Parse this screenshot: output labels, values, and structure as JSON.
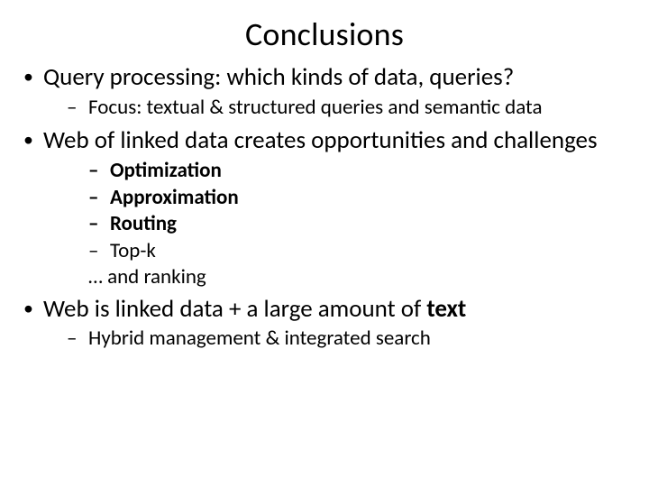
{
  "slide": {
    "title": "Conclusions",
    "title_fontsize": 36,
    "body_fontsize_l1": 27,
    "body_fontsize_l2": 23,
    "background_color": "#ffffff",
    "text_color": "#000000",
    "font_family": "Calibri",
    "bullets": {
      "b1": {
        "text": "Query processing: which kinds of data, queries?",
        "sub": {
          "s1": "Focus: textual & structured queries and semantic data"
        }
      },
      "b2": {
        "text": "Web of linked data creates opportunities and challenges",
        "sub3": {
          "i1": "Optimization",
          "i2": "Approximation",
          "i3": "Routing",
          "i4": "Top-k",
          "i5": "… and ranking"
        }
      },
      "b3": {
        "text_prefix": "Web is linked data + a large amount of ",
        "text_bold": "text",
        "sub": {
          "s1": "Hybrid management & integrated search"
        }
      }
    }
  }
}
